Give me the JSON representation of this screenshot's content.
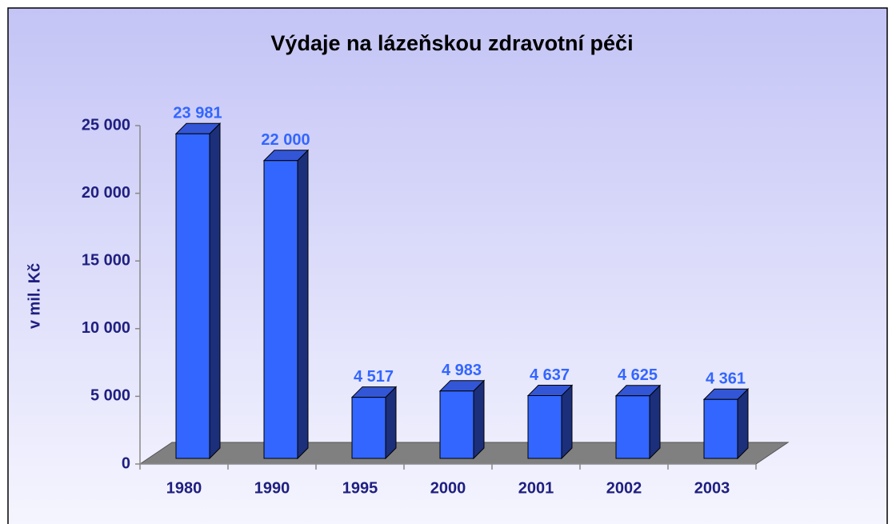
{
  "chart_data": {
    "type": "bar3d",
    "title": "Výdaje na lázeňskou zdravotní péči",
    "y_label": "v mil. Kč",
    "categories": [
      "1980",
      "1990",
      "1995",
      "2000",
      "2001",
      "2002",
      "2003"
    ],
    "values": [
      23981,
      22000,
      4517,
      4983,
      4637,
      4625,
      4361
    ],
    "value_labels": [
      "23 981",
      "22 000",
      "4 517",
      "4 983",
      "4 637",
      "4 625",
      "4 361"
    ],
    "color": "#3366ff",
    "ylim": [
      0,
      25000
    ],
    "yticks": [
      0,
      {
        "value": 5000,
        "label": "5 000"
      },
      {
        "value": 10000,
        "label": "10 000"
      },
      {
        "value": 15000,
        "label": "15 000"
      },
      {
        "value": 20000,
        "label": "20 000"
      },
      {
        "value": 25000,
        "label": "25 000"
      }
    ]
  }
}
